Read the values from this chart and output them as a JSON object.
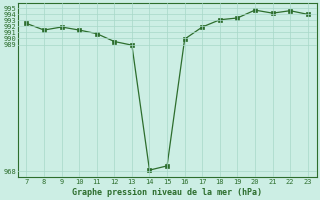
{
  "x": [
    7,
    8,
    9,
    10,
    11,
    12,
    13,
    14,
    15,
    16,
    17,
    18,
    19,
    20,
    21,
    22,
    23
  ],
  "y": [
    992.5,
    991.4,
    991.9,
    991.4,
    990.8,
    989.5,
    988.9,
    968.2,
    968.9,
    989.9,
    991.9,
    993.1,
    993.4,
    994.7,
    994.2,
    994.6,
    994.0
  ],
  "xlim": [
    6.5,
    23.5
  ],
  "ylim": [
    967.0,
    995.8
  ],
  "yticks": [
    968,
    989,
    990,
    991,
    992,
    993,
    994,
    995
  ],
  "xticks": [
    7,
    8,
    9,
    10,
    11,
    12,
    13,
    14,
    15,
    16,
    17,
    18,
    19,
    20,
    21,
    22,
    23
  ],
  "xlabel": "Graphe pression niveau de la mer (hPa)",
  "line_color": "#2d6e2d",
  "marker_color": "#2d6e2d",
  "bg_color": "#cceee4",
  "grid_color": "#a8d8c8",
  "tick_color": "#2d6e2d",
  "xlabel_color": "#2d6e2d",
  "figsize": [
    3.2,
    2.0
  ],
  "dpi": 100
}
